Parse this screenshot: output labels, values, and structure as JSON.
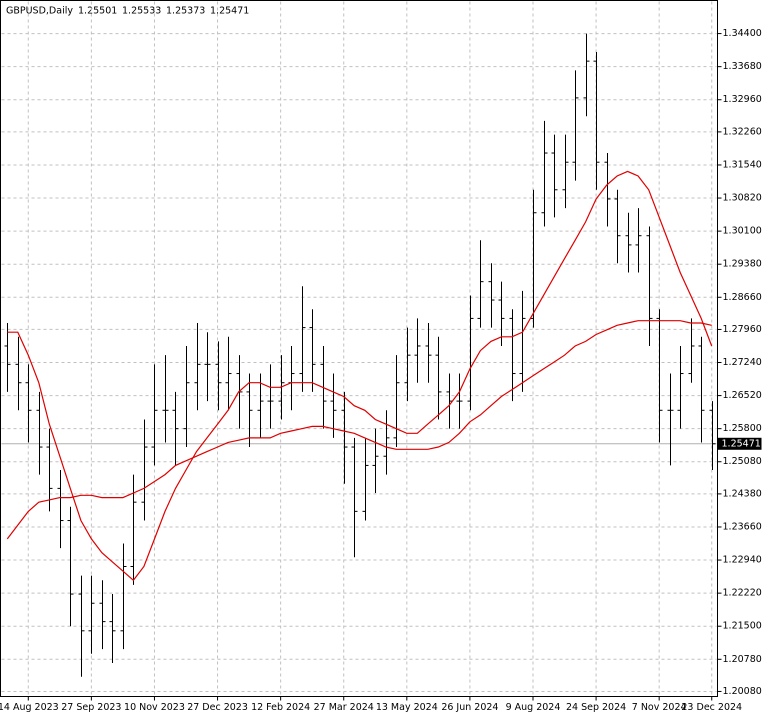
{
  "chart_data": {
    "type": "ohlc",
    "title": "GBPUSD,Daily",
    "header_values": [
      1.25501,
      1.25533,
      1.25373,
      1.25471
    ],
    "current_price": 1.25471,
    "color": "#000000",
    "grid": true,
    "categories": [
      null,
      null,
      "14 Aug 2023",
      null,
      null,
      null,
      null,
      null,
      "27 Sep 2023",
      null,
      null,
      null,
      null,
      null,
      "10 Nov 2023",
      null,
      null,
      null,
      null,
      null,
      "27 Dec 2023",
      null,
      null,
      null,
      null,
      null,
      "12 Feb 2024",
      null,
      null,
      null,
      null,
      null,
      "27 Mar 2024",
      null,
      null,
      null,
      null,
      null,
      "13 May 2024",
      null,
      null,
      null,
      null,
      null,
      "26 Jun 2024",
      null,
      null,
      null,
      null,
      null,
      "9 Aug 2024",
      null,
      null,
      null,
      null,
      null,
      "24 Sep 2024",
      null,
      null,
      null,
      null,
      null,
      "7 Nov 2024",
      null,
      null,
      null,
      null,
      "23 Dec 2024"
    ],
    "open": [
      1.276,
      1.272,
      1.268,
      1.262,
      1.254,
      1.245,
      1.238,
      1.222,
      1.214,
      1.22,
      1.216,
      1.214,
      1.228,
      1.242,
      1.254,
      1.262,
      1.262,
      1.258,
      1.268,
      1.272,
      1.272,
      1.268,
      1.27,
      1.266,
      1.262,
      1.264,
      1.264,
      1.268,
      1.27,
      1.28,
      1.272,
      1.264,
      1.262,
      1.254,
      1.24,
      1.25,
      1.252,
      1.256,
      1.268,
      1.274,
      1.276,
      1.274,
      1.266,
      1.264,
      1.264,
      1.282,
      1.29,
      1.286,
      1.282,
      1.27,
      1.282,
      1.305,
      1.318,
      1.31,
      1.316,
      1.33,
      1.338,
      1.316,
      1.308,
      1.3,
      1.298,
      1.3,
      1.282,
      1.262,
      1.262,
      1.27,
      1.276,
      1.262
    ],
    "high": [
      1.281,
      1.278,
      1.272,
      1.266,
      1.258,
      1.249,
      1.241,
      1.226,
      1.226,
      1.225,
      1.222,
      1.233,
      1.248,
      1.26,
      1.272,
      1.274,
      1.266,
      1.276,
      1.281,
      1.279,
      1.277,
      1.278,
      1.274,
      1.27,
      1.27,
      1.272,
      1.274,
      1.276,
      1.289,
      1.284,
      1.276,
      1.27,
      1.266,
      1.256,
      1.256,
      1.258,
      1.262,
      1.274,
      1.28,
      1.282,
      1.281,
      1.278,
      1.27,
      1.27,
      1.287,
      1.299,
      1.294,
      1.29,
      1.284,
      1.288,
      1.31,
      1.325,
      1.322,
      1.322,
      1.336,
      1.344,
      1.34,
      1.318,
      1.31,
      1.305,
      1.306,
      1.302,
      1.284,
      1.27,
      1.276,
      1.282,
      1.278,
      1.264
    ],
    "low": [
      1.266,
      1.262,
      1.255,
      1.248,
      1.24,
      1.232,
      1.215,
      1.204,
      1.209,
      1.21,
      1.207,
      1.21,
      1.224,
      1.238,
      1.25,
      1.255,
      1.25,
      1.254,
      1.262,
      1.264,
      1.262,
      1.262,
      1.258,
      1.254,
      1.256,
      1.258,
      1.26,
      1.262,
      1.266,
      1.266,
      1.258,
      1.256,
      1.246,
      1.23,
      1.238,
      1.244,
      1.248,
      1.254,
      1.264,
      1.268,
      1.268,
      1.26,
      1.258,
      1.258,
      1.262,
      1.28,
      1.28,
      1.276,
      1.264,
      1.266,
      1.28,
      1.302,
      1.304,
      1.306,
      1.312,
      1.326,
      1.31,
      1.302,
      1.294,
      1.292,
      1.292,
      1.276,
      1.255,
      1.25,
      1.258,
      1.268,
      1.255,
      1.249
    ],
    "close": [
      1.272,
      1.268,
      1.262,
      1.254,
      1.245,
      1.238,
      1.222,
      1.214,
      1.22,
      1.216,
      1.214,
      1.228,
      1.242,
      1.254,
      1.262,
      1.262,
      1.258,
      1.268,
      1.272,
      1.272,
      1.268,
      1.27,
      1.266,
      1.262,
      1.264,
      1.264,
      1.268,
      1.27,
      1.28,
      1.272,
      1.264,
      1.262,
      1.254,
      1.24,
      1.25,
      1.252,
      1.256,
      1.268,
      1.274,
      1.276,
      1.274,
      1.266,
      1.264,
      1.264,
      1.282,
      1.29,
      1.286,
      1.282,
      1.27,
      1.282,
      1.305,
      1.318,
      1.31,
      1.316,
      1.33,
      1.338,
      1.316,
      1.308,
      1.3,
      1.298,
      1.3,
      1.282,
      1.262,
      1.262,
      1.27,
      1.276,
      1.262,
      1.25471
    ],
    "moving_averages": [
      {
        "color": "#e00000",
        "values": [
          1.279,
          1.279,
          1.274,
          1.268,
          1.259,
          1.252,
          1.245,
          1.238,
          1.234,
          1.231,
          1.229,
          1.227,
          1.225,
          1.228,
          1.234,
          1.24,
          1.245,
          1.249,
          1.253,
          1.256,
          1.259,
          1.262,
          1.266,
          1.268,
          1.268,
          1.267,
          1.267,
          1.268,
          1.268,
          1.268,
          1.267,
          1.266,
          1.265,
          1.263,
          1.262,
          1.26,
          1.259,
          1.258,
          1.257,
          1.257,
          1.259,
          1.261,
          1.263,
          1.266,
          1.271,
          1.275,
          1.277,
          1.278,
          1.278,
          1.279,
          1.283,
          1.287,
          1.291,
          1.295,
          1.299,
          1.303,
          1.308,
          1.311,
          1.313,
          1.314,
          1.313,
          1.31,
          1.304,
          1.298,
          1.292,
          1.287,
          1.282,
          1.276
        ]
      },
      {
        "color": "#e00000",
        "values": [
          1.234,
          1.237,
          1.24,
          1.242,
          1.2425,
          1.243,
          1.243,
          1.2435,
          1.2435,
          1.243,
          1.243,
          1.243,
          1.244,
          1.245,
          1.2465,
          1.248,
          1.25,
          1.251,
          1.252,
          1.253,
          1.254,
          1.255,
          1.2555,
          1.256,
          1.256,
          1.256,
          1.257,
          1.2575,
          1.258,
          1.2585,
          1.2585,
          1.258,
          1.2575,
          1.257,
          1.256,
          1.255,
          1.254,
          1.2535,
          1.2535,
          1.2535,
          1.2535,
          1.254,
          1.255,
          1.257,
          1.2595,
          1.261,
          1.263,
          1.265,
          1.2665,
          1.268,
          1.2695,
          1.271,
          1.2725,
          1.274,
          1.276,
          1.277,
          1.2785,
          1.2795,
          1.2805,
          1.281,
          1.2815,
          1.2815,
          1.2815,
          1.2815,
          1.2815,
          1.281,
          1.281,
          1.2805
        ]
      }
    ],
    "ylim": [
      1.1997,
      1.3512
    ],
    "yticks": [
      {
        "value": 1.2008,
        "label": "1.20080"
      },
      {
        "value": 1.2078,
        "label": "1.20780"
      },
      {
        "value": 1.215,
        "label": "1.21500"
      },
      {
        "value": 1.2222,
        "label": "1.22220"
      },
      {
        "value": 1.2294,
        "label": "1.22940"
      },
      {
        "value": 1.2366,
        "label": "1.23660"
      },
      {
        "value": 1.2438,
        "label": "1.24380"
      },
      {
        "value": 1.2508,
        "label": "1.25080"
      },
      {
        "value": 1.258,
        "label": "1.25800"
      },
      {
        "value": 1.2652,
        "label": "1.26520"
      },
      {
        "value": 1.2724,
        "label": "1.27240"
      },
      {
        "value": 1.2796,
        "label": "1.27960"
      },
      {
        "value": 1.2866,
        "label": "1.28660"
      },
      {
        "value": 1.2938,
        "label": "1.29380"
      },
      {
        "value": 1.301,
        "label": "1.30100"
      },
      {
        "value": 1.3082,
        "label": "1.30820"
      },
      {
        "value": 1.3154,
        "label": "1.31540"
      },
      {
        "value": 1.3226,
        "label": "1.32260"
      },
      {
        "value": 1.3296,
        "label": "1.32960"
      },
      {
        "value": 1.3368,
        "label": "1.33680"
      },
      {
        "value": 1.344,
        "label": "1.34400"
      }
    ]
  }
}
